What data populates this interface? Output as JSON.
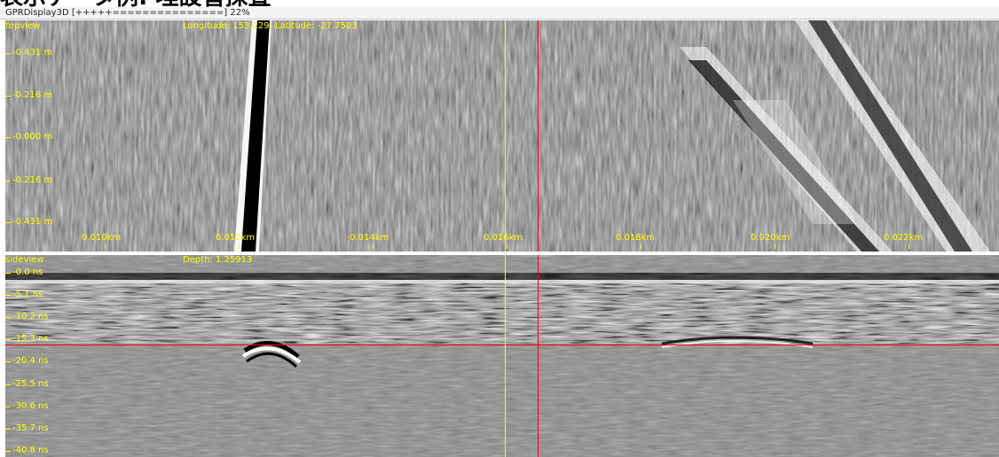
{
  "heading": "表示データ例: 埋設管探査",
  "window": {
    "title": "GPRDisplay3D [+++++===============] 22%"
  },
  "colors": {
    "label": "#ffff00",
    "cursor_yellow": "#ffff00",
    "cursor_red": "#ff0000"
  },
  "topview": {
    "name": "topview",
    "readout": "Longitude: 153.229, Latitude: -27.7503",
    "y_ticks": [
      "-0.431 m",
      "-0.216 m",
      "-0.000 m",
      "-0.216 m",
      "-0.431 m"
    ],
    "x_ticks": [
      "0.010km",
      "0.012km",
      "0.014km",
      "0.016km",
      "0.018km",
      "0.020km",
      "0.022km"
    ]
  },
  "sideview": {
    "name": "sideview",
    "readout": "Depth: 1.25913",
    "y_ticks": [
      "-0.0 ns",
      "-5.1 ns",
      "-10.2 ns",
      "-15.3 ns",
      "-20.4 ns",
      "-25.5 ns",
      "-30.6 ns",
      "-35.7 ns",
      "-40.8 ns"
    ]
  }
}
